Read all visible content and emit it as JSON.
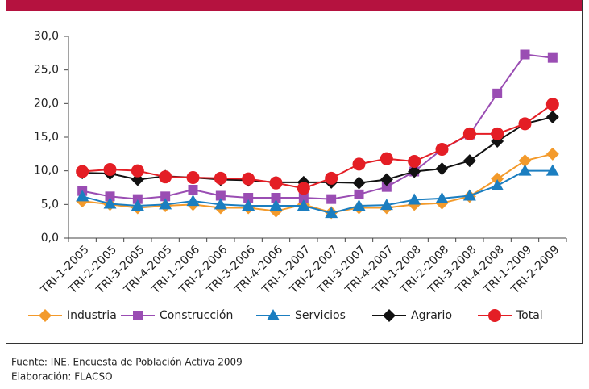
{
  "chart_data": {
    "type": "line",
    "categories": [
      "TRI-1-2005",
      "TRI-2-2005",
      "TRI-3-2005",
      "TRI-4-2005",
      "TRI-1-2006",
      "TRI-2-2006",
      "TRI-3-2006",
      "TRI-4-2006",
      "TRI-1-2007",
      "TRI-2-2007",
      "TRI-3-2007",
      "TRI-4-2007",
      "TRI-1-2008",
      "TRI-2-2008",
      "TRI-3-2008",
      "TRI-4-2008",
      "TRI-1-2009",
      "TRI-2-2009"
    ],
    "series": [
      {
        "name": "Industria",
        "color": "#f39a2b",
        "marker": "diamond",
        "values": [
          5.5,
          5.0,
          4.5,
          4.8,
          5.0,
          4.5,
          4.5,
          4.0,
          5.0,
          3.8,
          4.5,
          4.5,
          5.0,
          5.2,
          6.2,
          8.8,
          11.5,
          12.5
        ]
      },
      {
        "name": "Construcción",
        "color": "#9a4db3",
        "marker": "square",
        "values": [
          7.0,
          6.2,
          5.8,
          6.2,
          7.2,
          6.3,
          6.0,
          6.0,
          6.0,
          5.8,
          6.5,
          7.6,
          9.9,
          13.2,
          15.4,
          21.5,
          27.3,
          26.8
        ]
      },
      {
        "name": "Servicios",
        "color": "#1b7ec0",
        "marker": "triangle",
        "values": [
          6.2,
          5.1,
          4.8,
          5.0,
          5.5,
          5.0,
          4.8,
          4.8,
          4.8,
          3.7,
          4.8,
          4.9,
          5.7,
          5.9,
          6.3,
          7.8,
          10.0,
          10.0
        ]
      },
      {
        "name": "Agrario",
        "color": "#111111",
        "marker": "diamond",
        "values": [
          9.7,
          9.6,
          8.7,
          9.2,
          9.0,
          8.7,
          8.6,
          8.3,
          8.3,
          8.3,
          8.2,
          8.7,
          9.9,
          10.3,
          11.5,
          14.4,
          17.0,
          18.0
        ]
      },
      {
        "name": "Total",
        "color": "#e41e25",
        "marker": "circle",
        "values": [
          9.9,
          10.2,
          10.0,
          9.1,
          9.0,
          8.9,
          8.8,
          8.2,
          7.4,
          8.9,
          11.0,
          11.8,
          11.4,
          13.2,
          15.5,
          15.5,
          17.0,
          19.9
        ]
      }
    ],
    "ylim": [
      0,
      30
    ],
    "yticks": [
      {
        "value": 0,
        "label": "0,0"
      },
      {
        "value": 5,
        "label": "5,0"
      },
      {
        "value": 10,
        "label": "10,0"
      },
      {
        "value": 15,
        "label": "15,0"
      },
      {
        "value": 20,
        "label": "20,0"
      },
      {
        "value": 25,
        "label": "25,0"
      },
      {
        "value": 30,
        "label": "30,0"
      }
    ],
    "grid": false
  },
  "footer": {
    "source": "Fuente: INE, Encuesta de Población Activa 2009",
    "credit": "Elaboración: FLACSO"
  }
}
